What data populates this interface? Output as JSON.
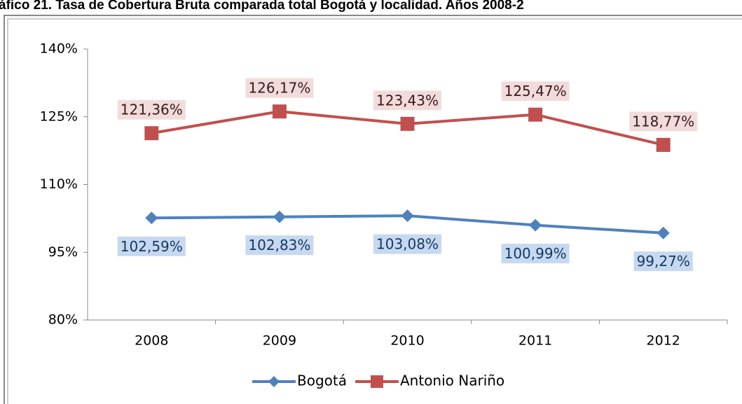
{
  "chart_data": {
    "type": "line",
    "title": "áfico 21. Tasa de Cobertura Bruta comparada total Bogotá y localidad. Años 2008-2",
    "categories": [
      "2008",
      "2009",
      "2010",
      "2011",
      "2012"
    ],
    "series": [
      {
        "name": "Bogotá",
        "color": "#4f81bd",
        "values": [
          102.59,
          102.83,
          103.08,
          100.99,
          99.27
        ],
        "value_labels": [
          "102,59%",
          "102,83%",
          "103,08%",
          "100,99%",
          "99,27%"
        ]
      },
      {
        "name": "Antonio Nariño",
        "color": "#c0504d",
        "values": [
          121.36,
          126.17,
          123.43,
          125.47,
          118.77
        ],
        "value_labels": [
          "121,36%",
          "126,17%",
          "123,43%",
          "125,47%",
          "118,77%"
        ]
      }
    ],
    "ylim": [
      80,
      140
    ],
    "yticks": [
      {
        "value": 80,
        "label": "80%"
      },
      {
        "value": 95,
        "label": "95%"
      },
      {
        "value": 110,
        "label": "110%"
      },
      {
        "value": 125,
        "label": "125%"
      },
      {
        "value": 140,
        "label": "140%"
      }
    ],
    "legend": "bottom"
  }
}
